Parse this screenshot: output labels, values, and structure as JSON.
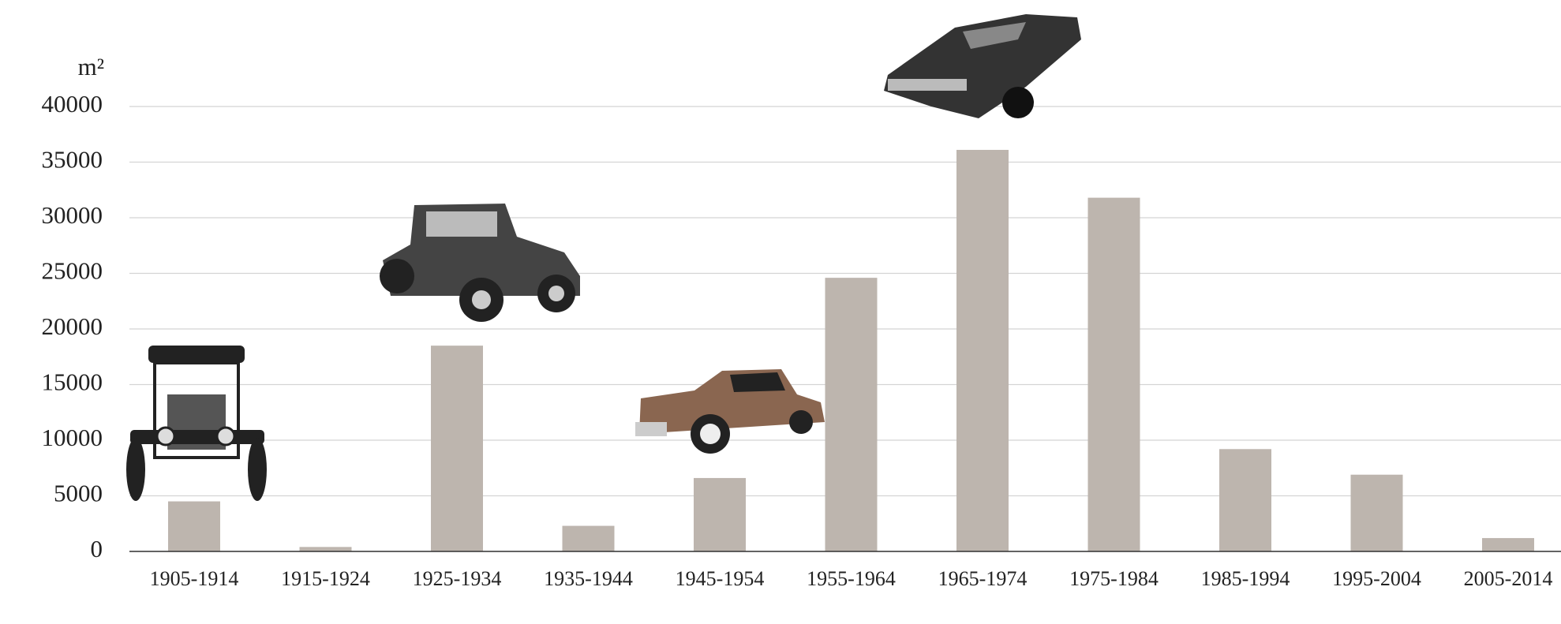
{
  "chart_data": {
    "type": "bar",
    "ylabel": "m²",
    "categories": [
      "1905-1914",
      "1915-1924",
      "1925-1934",
      "1935-1944",
      "1945-1954",
      "1955-1964",
      "1965-1974",
      "1975-1984",
      "1985-1994",
      "1995-2004",
      "2005-2014"
    ],
    "values": [
      4500,
      400,
      18500,
      2300,
      6600,
      24600,
      36100,
      31800,
      9200,
      6900,
      1200
    ],
    "color": "#bdb5ae",
    "ylim": [
      0,
      40000
    ],
    "yticks": [
      0,
      5000,
      10000,
      15000,
      20000,
      25000,
      30000,
      35000,
      40000
    ],
    "grid": true
  }
}
